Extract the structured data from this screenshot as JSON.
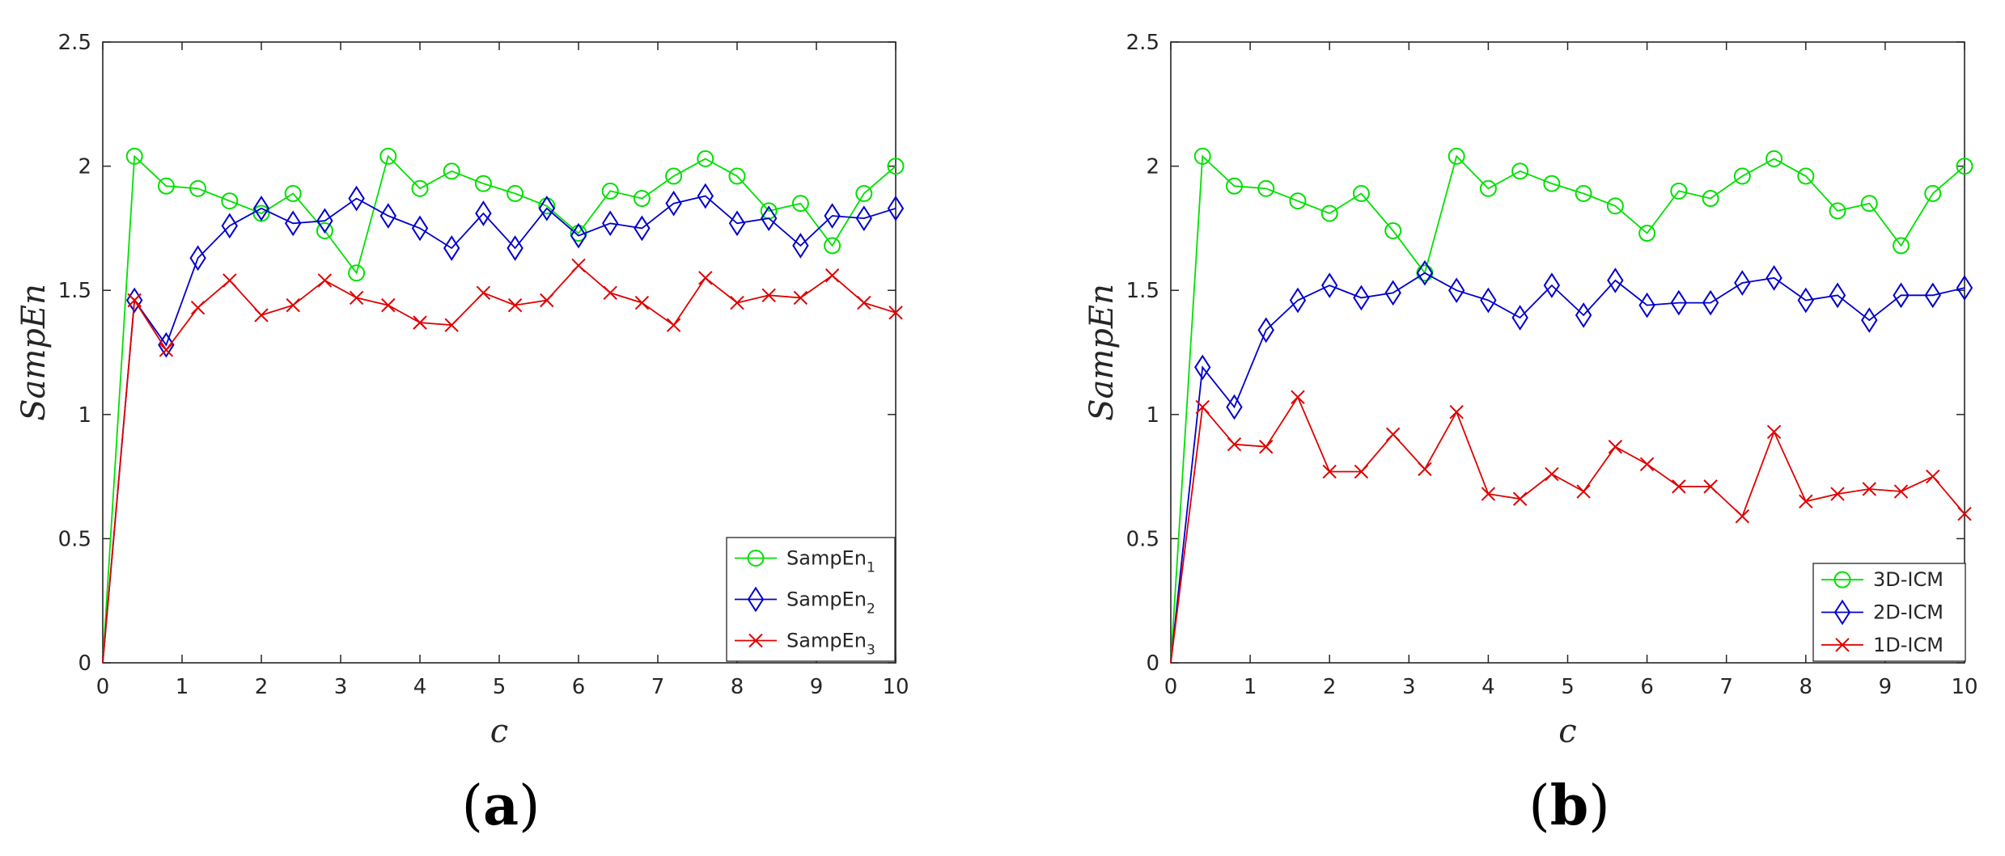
{
  "chart_data": [
    {
      "type": "line",
      "panel_label": "a",
      "xlabel": "c",
      "ylabel": "SampEn",
      "xlim": [
        0,
        10
      ],
      "ylim": [
        0,
        2.5
      ],
      "xticks": [
        "0",
        "1",
        "2",
        "3",
        "4",
        "5",
        "6",
        "7",
        "8",
        "9",
        "10"
      ],
      "yticks": [
        "0",
        "0.5",
        "1",
        "1.5",
        "2",
        "2.5"
      ],
      "legend_position": "bottom-right",
      "x": [
        0,
        0.4,
        0.8,
        1.2,
        1.6,
        2.0,
        2.4,
        2.8,
        3.2,
        3.6,
        4.0,
        4.4,
        4.8,
        5.2,
        5.6,
        6.0,
        6.4,
        6.8,
        7.2,
        7.6,
        8.0,
        8.4,
        8.8,
        9.2,
        9.6,
        10.0
      ],
      "series": [
        {
          "name": "SampEn",
          "subscript": "1",
          "color": "#00e000",
          "marker": "circle",
          "values": [
            0,
            2.04,
            1.92,
            1.91,
            1.86,
            1.81,
            1.89,
            1.74,
            1.57,
            2.04,
            1.91,
            1.98,
            1.93,
            1.89,
            1.84,
            1.73,
            1.9,
            1.87,
            1.96,
            2.03,
            1.96,
            1.82,
            1.85,
            1.68,
            1.89,
            2.0
          ]
        },
        {
          "name": "SampEn",
          "subscript": "2",
          "color": "#0000cc",
          "marker": "diamond",
          "values": [
            0,
            1.46,
            1.28,
            1.63,
            1.76,
            1.83,
            1.77,
            1.78,
            1.87,
            1.8,
            1.75,
            1.67,
            1.81,
            1.67,
            1.83,
            1.72,
            1.77,
            1.75,
            1.85,
            1.88,
            1.77,
            1.79,
            1.68,
            1.8,
            1.79,
            1.83
          ]
        },
        {
          "name": "SampEn",
          "subscript": "3",
          "color": "#e00000",
          "marker": "x",
          "values": [
            0,
            1.46,
            1.26,
            1.43,
            1.54,
            1.4,
            1.44,
            1.54,
            1.47,
            1.44,
            1.37,
            1.36,
            1.49,
            1.44,
            1.46,
            1.6,
            1.49,
            1.45,
            1.36,
            1.55,
            1.45,
            1.48,
            1.47,
            1.56,
            1.45,
            1.41
          ]
        }
      ]
    },
    {
      "type": "line",
      "panel_label": "b",
      "xlabel": "c",
      "ylabel": "SampEn",
      "xlim": [
        0,
        10
      ],
      "ylim": [
        0,
        2.5
      ],
      "xticks": [
        "0",
        "1",
        "2",
        "3",
        "4",
        "5",
        "6",
        "7",
        "8",
        "9",
        "10"
      ],
      "yticks": [
        "0",
        "0.5",
        "1",
        "1.5",
        "2",
        "2.5"
      ],
      "legend_position": "bottom-right",
      "x": [
        0,
        0.4,
        0.8,
        1.2,
        1.6,
        2.0,
        2.4,
        2.8,
        3.2,
        3.6,
        4.0,
        4.4,
        4.8,
        5.2,
        5.6,
        6.0,
        6.4,
        6.8,
        7.2,
        7.6,
        8.0,
        8.4,
        8.8,
        9.2,
        9.6,
        10.0
      ],
      "series": [
        {
          "name": "3D-ICM",
          "subscript": "",
          "color": "#00e000",
          "marker": "circle",
          "values": [
            0,
            2.04,
            1.92,
            1.91,
            1.86,
            1.81,
            1.89,
            1.74,
            1.57,
            2.04,
            1.91,
            1.98,
            1.93,
            1.89,
            1.84,
            1.73,
            1.9,
            1.87,
            1.96,
            2.03,
            1.96,
            1.82,
            1.85,
            1.68,
            1.89,
            2.0
          ]
        },
        {
          "name": "2D-ICM",
          "subscript": "",
          "color": "#0000cc",
          "marker": "diamond",
          "values": [
            0,
            1.19,
            1.03,
            1.34,
            1.46,
            1.52,
            1.47,
            1.49,
            1.57,
            1.5,
            1.46,
            1.39,
            1.52,
            1.4,
            1.54,
            1.44,
            1.45,
            1.45,
            1.53,
            1.55,
            1.46,
            1.48,
            1.38,
            1.48,
            1.48,
            1.51
          ]
        },
        {
          "name": "1D-ICM",
          "subscript": "",
          "color": "#e00000",
          "marker": "x",
          "values": [
            0,
            1.03,
            0.88,
            0.87,
            1.07,
            0.77,
            0.77,
            0.92,
            0.78,
            1.01,
            0.68,
            0.66,
            0.76,
            0.69,
            0.87,
            0.8,
            0.71,
            0.71,
            0.59,
            0.93,
            0.65,
            0.68,
            0.7,
            0.69,
            0.75,
            0.6
          ]
        }
      ]
    }
  ]
}
